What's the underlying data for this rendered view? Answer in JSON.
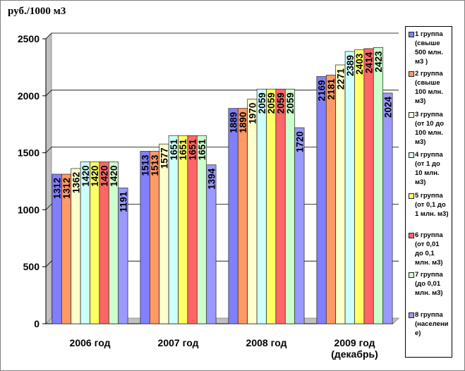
{
  "chart_data": {
    "type": "bar",
    "unit_label": "руб./1000 м3",
    "categories": [
      "2006 год",
      "2007 год",
      "2008 год",
      "2009 год\n(декабрь)"
    ],
    "ylim": [
      0,
      2500
    ],
    "yticks": [
      "0",
      "500",
      "1000",
      "1500",
      "2000",
      "2500"
    ],
    "grid": true,
    "legend_position": "right",
    "series": [
      {
        "name": "1 группа\n(свыше\n500 млн.\nм3 )",
        "color": "#8080ff",
        "values": [
          1312,
          1513,
          1889,
          2169
        ],
        "labels": [
          "1312",
          "1513",
          "1889",
          "2169"
        ]
      },
      {
        "name": "2 группа\n(свыше\n100 млн.\nм3)",
        "color": "#ff9966",
        "values": [
          1312,
          1513,
          1890,
          2181
        ],
        "labels": [
          "1312",
          "1513",
          "1890",
          "2181"
        ]
      },
      {
        "name": "3 группа\n(от 10 до\n100 млн.\nм3)",
        "color": "#ffffcc",
        "values": [
          1362,
          1577,
          1970,
          2271
        ],
        "labels": [
          "1362",
          "1577",
          "1970",
          "2271"
        ]
      },
      {
        "name": "4 группа\n(от 1 до\n10 млн.\nм3)",
        "color": "#ccffff",
        "values": [
          1420,
          1651,
          2059,
          2389
        ],
        "labels": [
          "1420",
          "1651",
          "2059",
          "2389"
        ]
      },
      {
        "name": "5 группа\n(от 0,1 до\n1 млн. м3)",
        "color": "#ffff66",
        "values": [
          1420,
          1651,
          2059,
          2403
        ],
        "labels": [
          "1420",
          "1651",
          "2059",
          "2403"
        ]
      },
      {
        "name": "6 группа\n(от 0,01\nдо 0,1\nмлн. м3)",
        "color": "#ff6666",
        "values": [
          1420,
          1651,
          2059,
          2414
        ],
        "labels": [
          "1420",
          "1651",
          "2059",
          "2414"
        ]
      },
      {
        "name": "7 группа\n(до 0,01\nмлн. м3)",
        "color": "#ccffcc",
        "values": [
          1420,
          1651,
          2059,
          2423
        ],
        "labels": [
          "1420",
          "1651",
          "2059",
          "2423"
        ]
      },
      {
        "name": "8 группа\n(населени\nе)",
        "color": "#9999ff",
        "values": [
          1191,
          1394,
          1720,
          2024
        ],
        "labels": [
          "1191",
          "1394",
          "1720",
          "2024"
        ]
      }
    ]
  }
}
